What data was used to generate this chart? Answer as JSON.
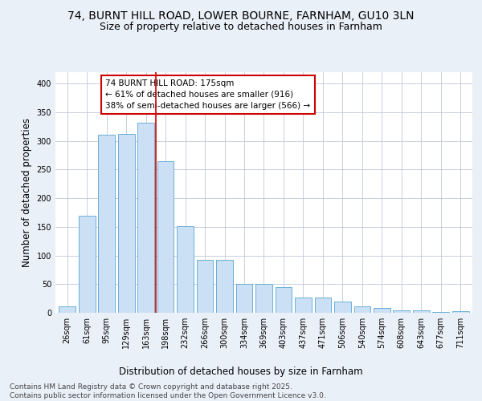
{
  "title_line1": "74, BURNT HILL ROAD, LOWER BOURNE, FARNHAM, GU10 3LN",
  "title_line2": "Size of property relative to detached houses in Farnham",
  "xlabel": "Distribution of detached houses by size in Farnham",
  "ylabel": "Number of detached properties",
  "categories": [
    "26sqm",
    "61sqm",
    "95sqm",
    "129sqm",
    "163sqm",
    "198sqm",
    "232sqm",
    "266sqm",
    "300sqm",
    "334sqm",
    "369sqm",
    "403sqm",
    "437sqm",
    "471sqm",
    "506sqm",
    "540sqm",
    "574sqm",
    "608sqm",
    "643sqm",
    "677sqm",
    "711sqm"
  ],
  "values": [
    11,
    170,
    311,
    312,
    332,
    264,
    151,
    93,
    93,
    50,
    50,
    45,
    26,
    26,
    19,
    11,
    8,
    4,
    4,
    1,
    3
  ],
  "bar_color": "#cce0f5",
  "bar_edge_color": "#6aaed6",
  "vline_x": 4.5,
  "vline_color": "#cc0000",
  "annotation_box_text": "74 BURNT HILL ROAD: 175sqm\n← 61% of detached houses are smaller (916)\n38% of semi-detached houses are larger (566) →",
  "annotation_box_color": "#cc0000",
  "ylim": [
    0,
    420
  ],
  "yticks": [
    0,
    50,
    100,
    150,
    200,
    250,
    300,
    350,
    400
  ],
  "bg_color": "#eaf0f8",
  "plot_bg_color": "#ffffff",
  "footer_text": "Contains HM Land Registry data © Crown copyright and database right 2025.\nContains public sector information licensed under the Open Government Licence v3.0.",
  "title_fontsize": 10,
  "subtitle_fontsize": 9,
  "axis_label_fontsize": 8.5,
  "tick_fontsize": 7,
  "footer_fontsize": 6.5,
  "annotation_fontsize": 7.5
}
